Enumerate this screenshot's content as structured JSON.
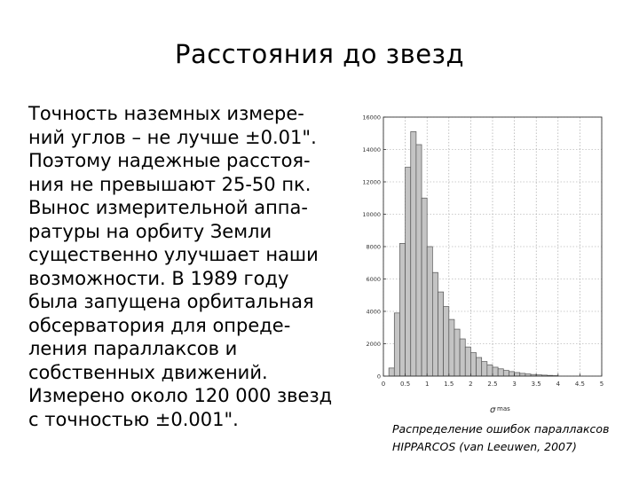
{
  "slide": {
    "title": "Расстояния до звезд",
    "body_text": " Точность наземных измере-\nний углов – не лучше ±0.01\".\nПоэтому надежные расстоя-\nния не превышают 25-50 пк.\nВынос измерительной аппа-\nратуры на орбиту Земли\nсущественно улучшает наши\nвозможности. В 1989 году\nбыла запущена орбитальная\nобсерватория для опреде-\nления параллаксов и\nсобственных движений.\nИзмерено около 120 000 звезд\nс точностью ±0.001\".",
    "caption_line1": "Распределение ошибок параллаксов",
    "caption_line2": "HIPPARCOS (van Leeuwen, 2007)"
  },
  "chart_data": {
    "type": "bar",
    "title": "",
    "xlabel": "σ mas",
    "ylabel": "",
    "xlim": [
      0,
      5
    ],
    "ylim": [
      0,
      16000
    ],
    "bin_width": 0.125,
    "bin_starts": [
      0.125,
      0.25,
      0.375,
      0.5,
      0.625,
      0.75,
      0.875,
      1.0,
      1.125,
      1.25,
      1.375,
      1.5,
      1.625,
      1.75,
      1.875,
      2.0,
      2.125,
      2.25,
      2.375,
      2.5,
      2.625,
      2.75,
      2.875,
      3.0,
      3.125,
      3.25,
      3.375,
      3.5,
      3.625,
      3.75,
      3.875
    ],
    "values": [
      500,
      3900,
      8200,
      12900,
      15100,
      14300,
      11000,
      8000,
      6400,
      5200,
      4300,
      3500,
      2900,
      2300,
      1800,
      1450,
      1150,
      900,
      700,
      550,
      450,
      350,
      280,
      220,
      170,
      130,
      100,
      80,
      60,
      45,
      30
    ],
    "x_ticks": [
      "0",
      "0.5",
      "1",
      "1.5",
      "2",
      "2.5",
      "3",
      "3.5",
      "4",
      "4.5",
      "5"
    ],
    "y_ticks": [
      "0",
      "2000",
      "4000",
      "6000",
      "8000",
      "10000",
      "12000",
      "14000",
      "16000"
    ],
    "grid": true,
    "bar_color": "#c4c4c4",
    "bar_stroke": "#555555"
  }
}
